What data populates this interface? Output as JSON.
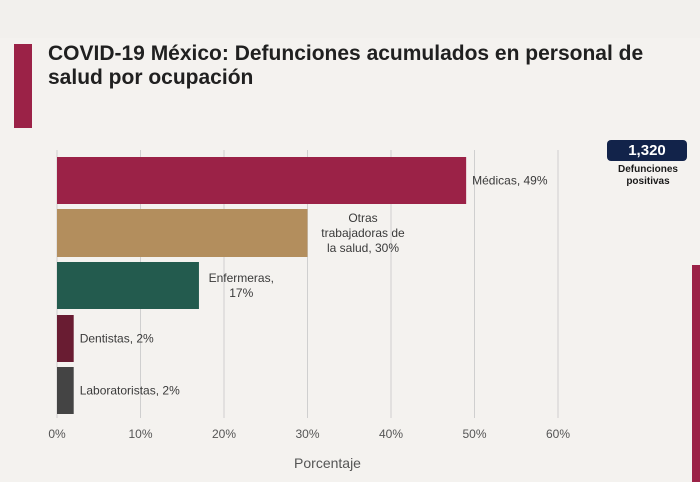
{
  "header": {
    "title_line1": "COVID-19 México: Defunciones acumulados en personal de",
    "title_line2": "salud por ocupación"
  },
  "badge": {
    "value": "1,320",
    "caption_line1": "Defunciones",
    "caption_line2": "positivas"
  },
  "colors": {
    "accent": "#9b2247",
    "badge_bg": "#12234a"
  },
  "chart_data": {
    "type": "bar",
    "orientation": "horizontal",
    "categories": [
      "Médicas",
      "Otras trabajadoras de la salud",
      "Enfermeras",
      "Dentistas",
      "Laboratoristas"
    ],
    "values": [
      49,
      30,
      17,
      2,
      2
    ],
    "data_labels": [
      [
        "Médicas, 49%"
      ],
      [
        "Otras",
        "trabajadoras de",
        "la salud, 30%"
      ],
      [
        "Enfermeras,",
        "17%"
      ],
      [
        "Dentistas, 2%"
      ],
      [
        "Laboratoristas, 2%"
      ]
    ],
    "colors": [
      "#9b2247",
      "#b38e5d",
      "#235b4e",
      "#691c32",
      "#444444"
    ],
    "xlabel": "Porcentaje",
    "xlim": [
      0,
      60
    ],
    "xticks": [
      "0%",
      "10%",
      "20%",
      "30%",
      "40%",
      "50%",
      "60%"
    ],
    "grid": "vertical"
  }
}
